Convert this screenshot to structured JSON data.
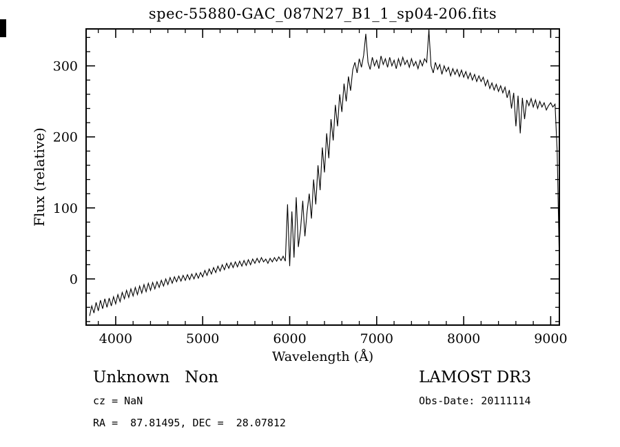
{
  "title": "spec-55880-GAC_087N27_B1_1_sp04-206.fits",
  "footer": {
    "class_label": "Unknown   Non",
    "survey": "LAMOST DR3",
    "cz": "cz = NaN",
    "obs_date": "Obs-Date: 20111114",
    "coords": "RA =  87.81495, DEC =  28.07812"
  },
  "chart_data": {
    "type": "line",
    "title": "spec-55880-GAC_087N27_B1_1_sp04-206.fits",
    "xlabel": "Wavelength (Å)",
    "ylabel": "Flux (relative)",
    "xlim": [
      3660,
      9100
    ],
    "ylim": [
      -65,
      352
    ],
    "x_ticks": [
      4000,
      5000,
      6000,
      7000,
      8000,
      9000
    ],
    "y_ticks": [
      0,
      100,
      200,
      300
    ],
    "x_minor_step": 200,
    "y_minor_step": 20,
    "grid": false,
    "legend": "none",
    "line_color": "#000000",
    "background": "#ffffff",
    "series": [
      {
        "name": "flux",
        "x_start": 3700,
        "x_step": 25,
        "values": [
          -52,
          -38,
          -48,
          -33,
          -45,
          -30,
          -42,
          -28,
          -40,
          -27,
          -38,
          -25,
          -35,
          -22,
          -32,
          -19,
          -28,
          -16,
          -26,
          -14,
          -24,
          -12,
          -22,
          -10,
          -20,
          -8,
          -18,
          -6,
          -16,
          -5,
          -14,
          -4,
          -12,
          -2,
          -10,
          0,
          -8,
          2,
          -6,
          3,
          -4,
          4,
          -3,
          5,
          -2,
          6,
          -1,
          7,
          0,
          8,
          1,
          9,
          3,
          12,
          5,
          14,
          7,
          16,
          9,
          18,
          11,
          20,
          13,
          22,
          15,
          23,
          16,
          24,
          17,
          25,
          18,
          26,
          19,
          27,
          20,
          28,
          22,
          29,
          23,
          30,
          24,
          28,
          22,
          29,
          24,
          30,
          25,
          31,
          26,
          32,
          25,
          105,
          18,
          95,
          30,
          115,
          45,
          70,
          110,
          60,
          95,
          120,
          85,
          140,
          105,
          160,
          125,
          185,
          150,
          205,
          170,
          225,
          195,
          245,
          215,
          260,
          235,
          275,
          250,
          285,
          265,
          295,
          305,
          290,
          310,
          298,
          315,
          345,
          305,
          295,
          312,
          300,
          308,
          296,
          314,
          302,
          310,
          298,
          312,
          300,
          308,
          296,
          310,
          300,
          312,
          302,
          308,
          298,
          310,
          300,
          306,
          296,
          308,
          300,
          310,
          305,
          350,
          300,
          290,
          305,
          295,
          302,
          288,
          300,
          292,
          298,
          286,
          296,
          288,
          295,
          285,
          294,
          284,
          292,
          282,
          290,
          280,
          288,
          278,
          286,
          278,
          284,
          272,
          280,
          268,
          276,
          266,
          274,
          264,
          272,
          262,
          270,
          255,
          266,
          240,
          262,
          215,
          258,
          205,
          255,
          225,
          252,
          244,
          254,
          242,
          252,
          240,
          250,
          242,
          248,
          238,
          244,
          248,
          242,
          246,
          180,
          20
        ]
      }
    ]
  }
}
